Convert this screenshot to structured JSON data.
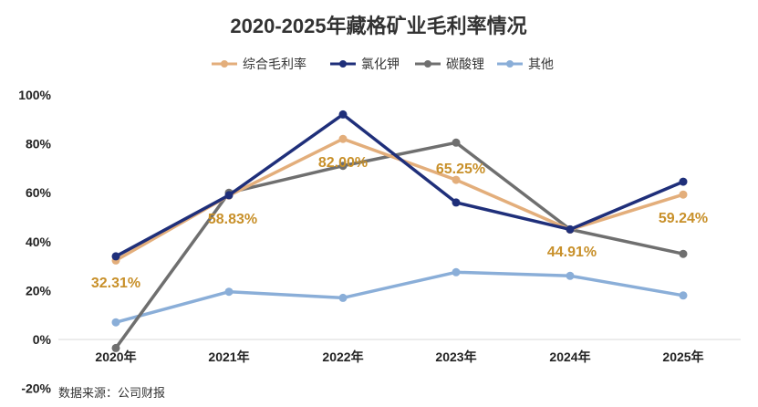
{
  "chart_data": {
    "type": "line",
    "title": "2020-2025年藏格矿业毛利率情况",
    "categories": [
      "2020年",
      "2021年",
      "2022年",
      "2023年",
      "2024年",
      "2025年"
    ],
    "ylim": [
      -20,
      100
    ],
    "yticks": [
      -20,
      0,
      20,
      40,
      60,
      80,
      100
    ],
    "ytick_labels": [
      "-20%",
      "0%",
      "20%",
      "40%",
      "60%",
      "80%",
      "100%"
    ],
    "legend_position": "top-center",
    "series": [
      {
        "name": "综合毛利率",
        "color": "#e3ae7b",
        "values": [
          32.31,
          58.83,
          82.0,
          65.25,
          44.91,
          59.24
        ]
      },
      {
        "name": "氯化钾",
        "color": "#1f2f7a",
        "values": [
          34,
          59,
          92,
          56,
          45,
          64.5
        ]
      },
      {
        "name": "碳酸锂",
        "color": "#6f6f6f",
        "values": [
          -3.5,
          60,
          71,
          80.5,
          45,
          35
        ]
      },
      {
        "name": "其他",
        "color": "#8aaed8",
        "values": [
          7,
          19.5,
          17,
          27.5,
          26,
          18
        ]
      }
    ],
    "data_labels": [
      "32.31%",
      "58.83%",
      "82.00%",
      "65.25%",
      "44.91%",
      "59.24%"
    ],
    "data_label_color": "#c8902a",
    "source": "数据来源：公司财报"
  }
}
